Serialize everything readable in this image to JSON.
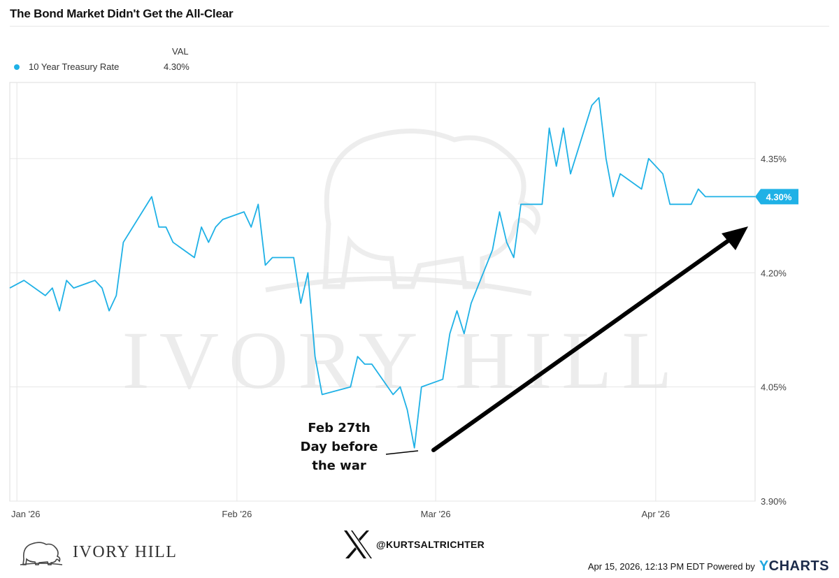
{
  "title": "The Bond Market Didn't Get the All-Clear",
  "legend": {
    "header": "VAL",
    "series_name": "10 Year Treasury Rate",
    "value": "4.30%",
    "color": "#1fb1e6"
  },
  "watermark_text": "IVORY HILL",
  "annotation": {
    "lines": [
      "Feb 27th",
      "Day before",
      "the war"
    ]
  },
  "last_value_label": "4.30%",
  "footer": {
    "brand": "IVORY HILL",
    "handle": "@KURTSALTRICHTER",
    "timestamp": "Apr 15, 2026, 12:13 PM EDT Powered by",
    "ycharts_y": "Y",
    "ycharts_rest": "CHARTS"
  },
  "chart_data": {
    "type": "line",
    "title": "The Bond Market Didn't Get the All-Clear",
    "xlabel": "",
    "ylabel": "",
    "ylim": [
      3.9,
      4.45
    ],
    "xlim": [
      "2025-12-31",
      "2026-04-15"
    ],
    "y_ticks": [
      4.35,
      4.2,
      4.05,
      3.9
    ],
    "y_tick_labels": [
      "4.35%",
      "4.20%",
      "4.05%",
      "3.90%"
    ],
    "x_ticks": [
      "2026-01-01",
      "2026-02-01",
      "2026-03-01",
      "2026-04-01"
    ],
    "x_tick_labels": [
      "Jan '26",
      "Feb '26",
      "Mar '26",
      "Apr '26"
    ],
    "grid": true,
    "legend_position": "top-left",
    "series": [
      {
        "name": "10 Year Treasury Rate",
        "color": "#1fb1e6",
        "x": [
          "2025-12-31",
          "2026-01-02",
          "2026-01-05",
          "2026-01-06",
          "2026-01-07",
          "2026-01-08",
          "2026-01-09",
          "2026-01-12",
          "2026-01-13",
          "2026-01-14",
          "2026-01-15",
          "2026-01-16",
          "2026-01-20",
          "2026-01-21",
          "2026-01-22",
          "2026-01-23",
          "2026-01-26",
          "2026-01-27",
          "2026-01-28",
          "2026-01-29",
          "2026-01-30",
          "2026-02-02",
          "2026-02-03",
          "2026-02-04",
          "2026-02-05",
          "2026-02-06",
          "2026-02-09",
          "2026-02-10",
          "2026-02-11",
          "2026-02-12",
          "2026-02-13",
          "2026-02-17",
          "2026-02-18",
          "2026-02-19",
          "2026-02-20",
          "2026-02-23",
          "2026-02-24",
          "2026-02-25",
          "2026-02-26",
          "2026-02-27",
          "2026-03-02",
          "2026-03-03",
          "2026-03-04",
          "2026-03-05",
          "2026-03-06",
          "2026-03-09",
          "2026-03-10",
          "2026-03-11",
          "2026-03-12",
          "2026-03-13",
          "2026-03-16",
          "2026-03-17",
          "2026-03-18",
          "2026-03-19",
          "2026-03-20",
          "2026-03-23",
          "2026-03-24",
          "2026-03-25",
          "2026-03-26",
          "2026-03-27",
          "2026-03-30",
          "2026-03-31",
          "2026-04-01",
          "2026-04-02",
          "2026-04-03",
          "2026-04-06",
          "2026-04-07",
          "2026-04-08",
          "2026-04-09",
          "2026-04-10",
          "2026-04-13",
          "2026-04-14",
          "2026-04-15"
        ],
        "values": [
          4.18,
          4.19,
          4.17,
          4.18,
          4.15,
          4.19,
          4.18,
          4.19,
          4.18,
          4.15,
          4.17,
          4.24,
          4.3,
          4.26,
          4.26,
          4.24,
          4.22,
          4.26,
          4.24,
          4.26,
          4.27,
          4.28,
          4.26,
          4.29,
          4.21,
          4.22,
          4.22,
          4.16,
          4.2,
          4.09,
          4.04,
          4.05,
          4.09,
          4.08,
          4.08,
          4.04,
          4.05,
          4.02,
          3.97,
          4.05,
          4.06,
          4.12,
          4.15,
          4.12,
          4.16,
          4.23,
          4.28,
          4.24,
          4.22,
          4.29,
          4.29,
          4.39,
          4.34,
          4.39,
          4.33,
          4.42,
          4.43,
          4.35,
          4.3,
          4.33,
          4.31,
          4.35,
          4.34,
          4.33,
          4.29,
          4.29,
          4.31,
          4.3,
          4.3,
          4.3,
          4.3,
          4.3,
          4.3
        ]
      }
    ],
    "annotations": [
      {
        "text": "Feb 27th Day before the war",
        "x": "2026-02-27",
        "y": 3.97
      }
    ]
  }
}
